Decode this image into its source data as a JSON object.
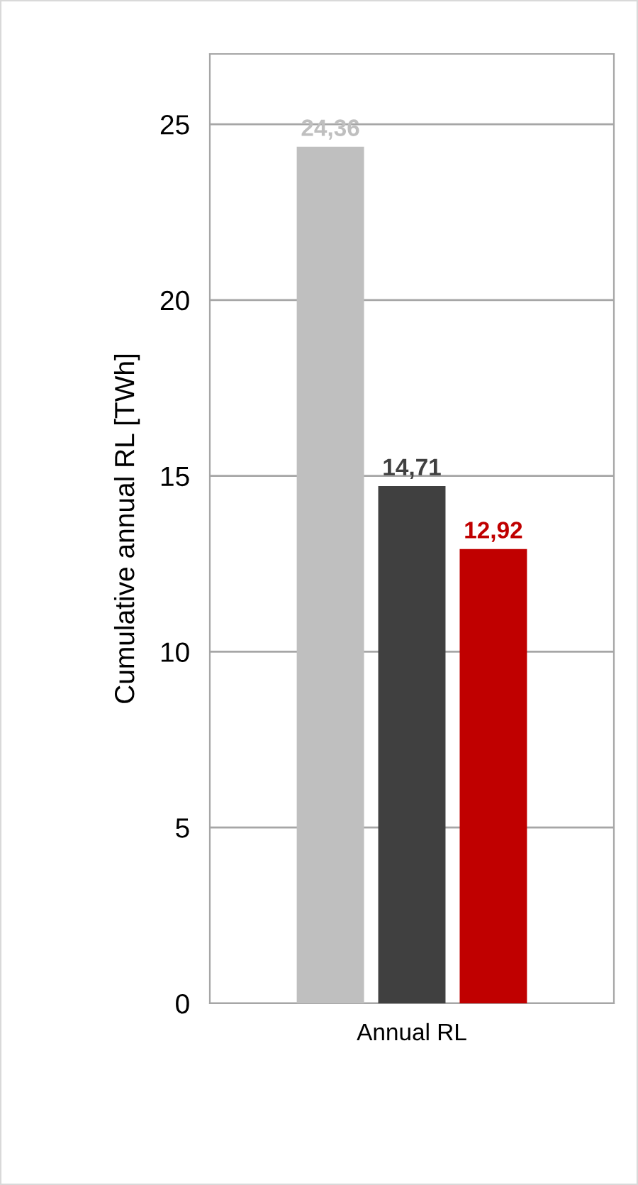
{
  "chart_data": {
    "type": "bar",
    "ylabel": "Cumulative annual RL [TWh]",
    "categories": [
      null,
      "Annual RL",
      null
    ],
    "values": [
      24.36,
      14.71,
      12.92
    ],
    "colors": [
      "#bfbfbf",
      "#404040",
      "#c00000"
    ],
    "value_labels": [
      "24,36",
      "14,71",
      "12,92"
    ],
    "ylim": [
      0,
      27
    ],
    "yticks": [
      0,
      5,
      10,
      15,
      20,
      25
    ],
    "grid": "y",
    "legend": false
  }
}
